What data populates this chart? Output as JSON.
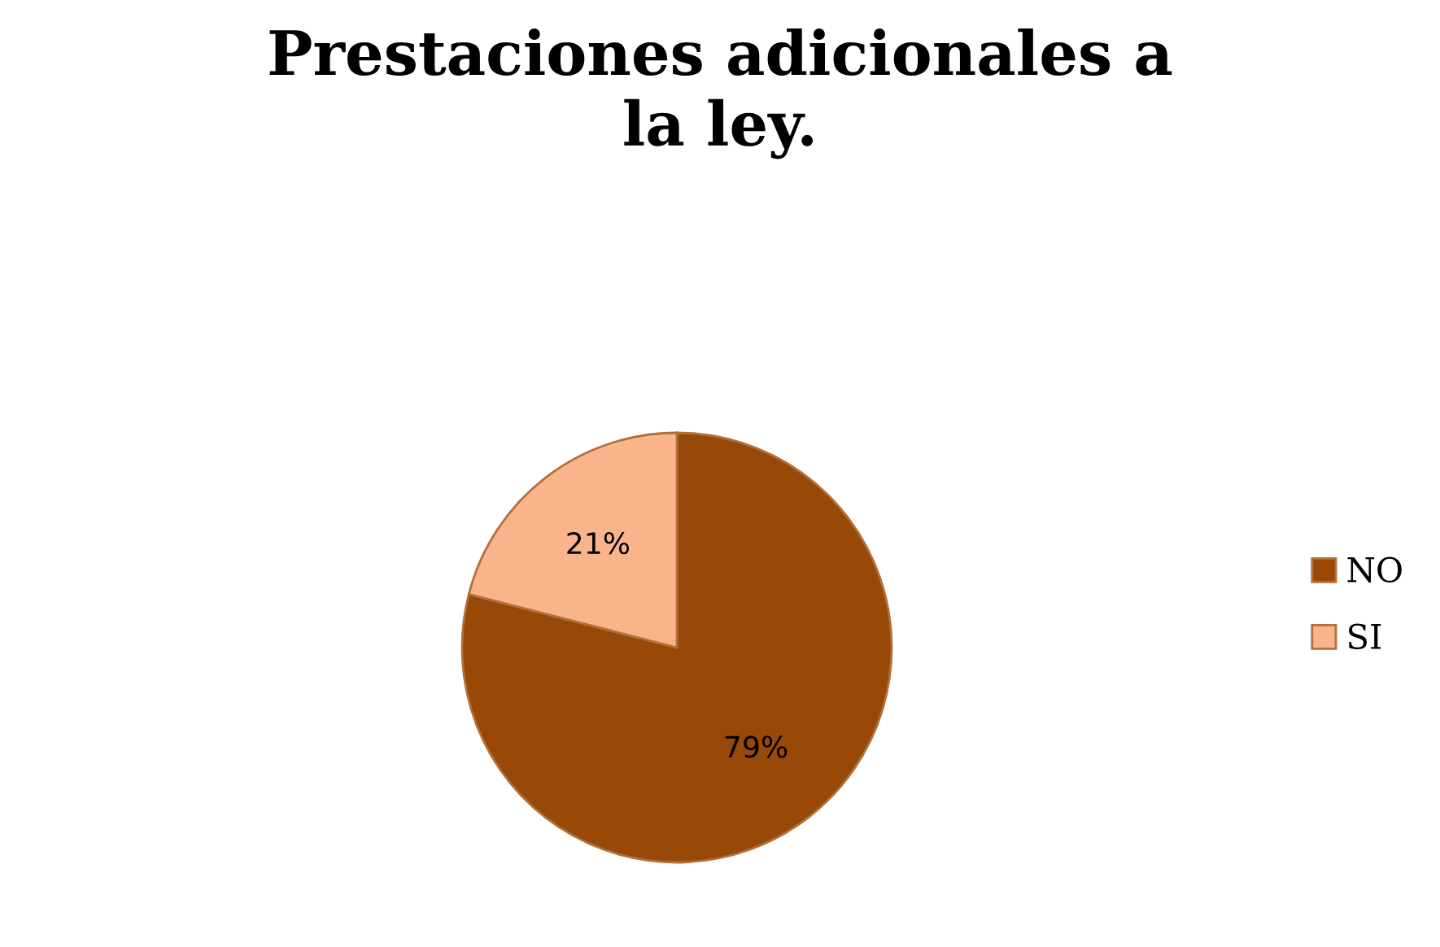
{
  "chart_data": {
    "type": "pie",
    "title": "Prestaciones adicionales a\nla ley.",
    "categories": [
      "NO",
      "SI"
    ],
    "values": [
      79,
      21
    ],
    "colors": [
      "#984807",
      "#fab48c"
    ],
    "value_labels": [
      "79%",
      "21%"
    ],
    "legend": "right"
  }
}
